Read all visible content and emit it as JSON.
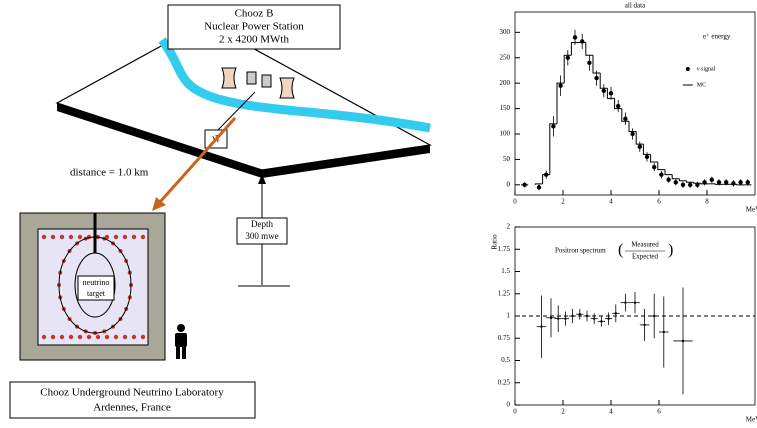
{
  "diagram": {
    "station_box": [
      "Chooz B",
      "Nuclear Power Station",
      "2 x 4200 MWth"
    ],
    "antineutrino_label": "ν̄ₑ",
    "distance_label": "distance = 1.0 km",
    "depth_box": [
      "Depth",
      "300 mwe"
    ],
    "target_box": [
      "neutrino",
      "target"
    ],
    "lab_box": [
      "Chooz Underground Neutrino Laboratory",
      "Ardennes, France"
    ]
  },
  "chart_data": [
    {
      "type": "line",
      "title": "all data",
      "annotation": "e⁺ energy",
      "x_axis_label": "MeV",
      "x": [
        0.4,
        1.0,
        1.3,
        1.6,
        1.9,
        2.2,
        2.5,
        2.8,
        3.1,
        3.4,
        3.7,
        4.0,
        4.3,
        4.6,
        4.9,
        5.2,
        5.5,
        5.8,
        6.1,
        6.4,
        6.7,
        7.0,
        7.3,
        7.6,
        7.9,
        8.2,
        8.5,
        8.8,
        9.1,
        9.4,
        9.7
      ],
      "series": [
        {
          "name": "ν signal",
          "color": "#000000",
          "style": "points",
          "values": [
            0,
            -5,
            20,
            115,
            195,
            250,
            290,
            282,
            240,
            210,
            185,
            180,
            155,
            130,
            100,
            75,
            55,
            35,
            20,
            10,
            5,
            0,
            0,
            0,
            5,
            10,
            5,
            5,
            3,
            5,
            5
          ],
          "errors": [
            5,
            6,
            8,
            20,
            20,
            15,
            15,
            15,
            15,
            15,
            13,
            13,
            12,
            12,
            11,
            10,
            9,
            8,
            7,
            6,
            6,
            6,
            6,
            6,
            6,
            6,
            6,
            6,
            6,
            6,
            6
          ]
        },
        {
          "name": "MC",
          "color": "#000000",
          "style": "step",
          "values": [
            0,
            2,
            20,
            120,
            200,
            255,
            280,
            280,
            255,
            220,
            190,
            170,
            150,
            125,
            105,
            80,
            60,
            45,
            30,
            20,
            12,
            8,
            5,
            3,
            2,
            2,
            1,
            1,
            1,
            0,
            0
          ]
        }
      ],
      "xlim": [
        0,
        10
      ],
      "xticks": [
        0,
        2,
        4,
        6,
        8
      ],
      "ylim": [
        -20,
        340
      ],
      "yticks": [
        0,
        50,
        100,
        150,
        200,
        250,
        300
      ]
    },
    {
      "type": "scatter",
      "y_axis_label": "Ratio",
      "annotation": "Positron spectrum",
      "fraction": [
        "Measured",
        "Expected"
      ],
      "x_axis_label": "MeV",
      "x": [
        1.1,
        1.5,
        1.8,
        2.1,
        2.4,
        2.7,
        3.0,
        3.3,
        3.6,
        3.9,
        4.2,
        4.6,
        5.0,
        5.4,
        5.8,
        6.2,
        7.0
      ],
      "xerr": [
        0.2,
        0.2,
        0.15,
        0.15,
        0.15,
        0.15,
        0.15,
        0.15,
        0.15,
        0.15,
        0.15,
        0.2,
        0.2,
        0.2,
        0.2,
        0.2,
        0.4
      ],
      "series": [
        {
          "color": "#000000",
          "values": [
            0.88,
            0.98,
            0.97,
            0.97,
            1.0,
            1.02,
            1.0,
            0.97,
            0.94,
            0.97,
            1.03,
            1.15,
            1.15,
            0.9,
            1.0,
            0.82,
            0.72
          ],
          "errors": [
            0.35,
            0.22,
            0.15,
            0.08,
            0.08,
            0.06,
            0.06,
            0.06,
            0.06,
            0.07,
            0.1,
            0.1,
            0.12,
            0.18,
            0.25,
            0.4,
            0.6
          ]
        }
      ],
      "reference_line": 1,
      "xlim": [
        0,
        10
      ],
      "xticks": [
        0,
        2,
        4,
        6
      ],
      "ylim": [
        0,
        2
      ],
      "yticks": [
        0,
        0.25,
        0.5,
        0.75,
        1,
        1.25,
        1.5,
        1.75,
        2
      ]
    }
  ]
}
